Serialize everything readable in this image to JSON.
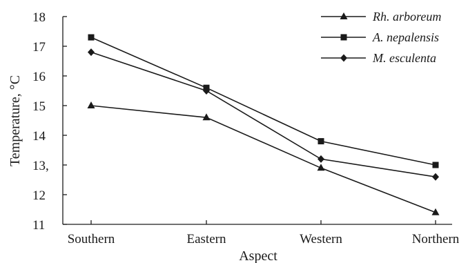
{
  "chart_data": {
    "type": "line",
    "title": "",
    "xlabel": "Aspect",
    "ylabel": "Temperature, °C",
    "categories": [
      "Southern",
      "Eastern",
      "Western",
      "Northern"
    ],
    "ylim": [
      11,
      18
    ],
    "yticks": [
      "11",
      "12",
      "13,",
      "14",
      "15",
      "16",
      "17",
      "18"
    ],
    "grid": false,
    "legend_position": "top-right",
    "series": [
      {
        "name": "Rh. arboreum",
        "marker": "triangle",
        "values": [
          15.0,
          14.6,
          12.9,
          11.4
        ]
      },
      {
        "name": "A. nepalensis",
        "marker": "square",
        "values": [
          17.3,
          15.6,
          13.8,
          13.0
        ]
      },
      {
        "name": "M. esculenta",
        "marker": "diamond",
        "values": [
          16.8,
          15.5,
          13.2,
          12.6
        ]
      }
    ],
    "colors": {
      "line": "#1a1a1a",
      "background": "#ffffff"
    }
  }
}
